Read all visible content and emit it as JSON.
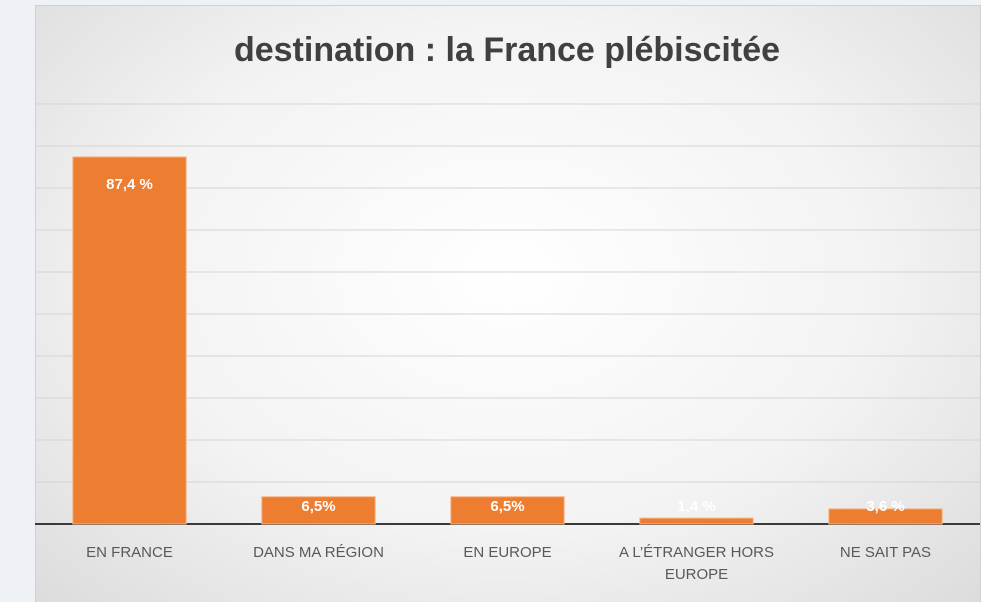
{
  "chart_data": {
    "type": "bar",
    "title": "destination : la France plébiscitée",
    "categories": [
      "EN FRANCE",
      "DANS MA RÉGION",
      "EN EUROPE",
      "A L’ÉTRANGER HORS EUROPE",
      "NE SAIT PAS"
    ],
    "values": [
      87.4,
      6.5,
      6.5,
      1.4,
      3.6
    ],
    "value_labels": [
      "87,4 %",
      "6,5%",
      "6,5%",
      "1,4 %",
      "3,6 %"
    ],
    "color": "#ed7d31",
    "ylim": [
      0,
      100
    ],
    "yticks": [
      0,
      10,
      20,
      30,
      40,
      50,
      60,
      70,
      80,
      90,
      100
    ],
    "grid": true
  }
}
